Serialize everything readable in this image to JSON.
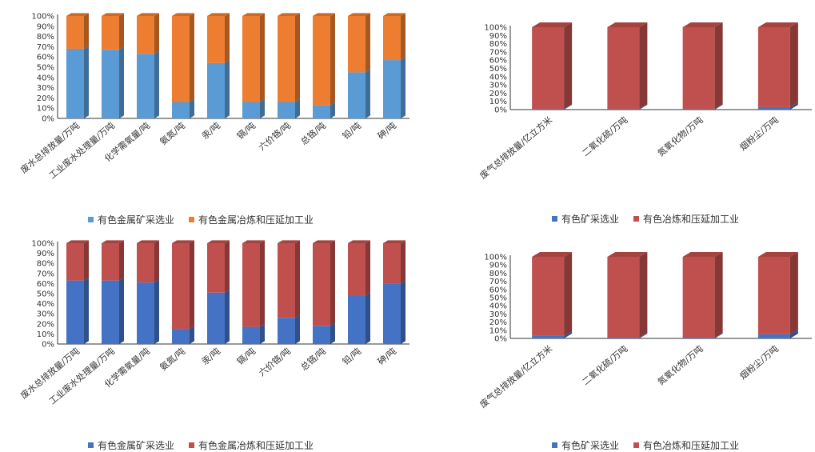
{
  "chart_data": [
    {
      "type": "bar",
      "stacked": true,
      "percent": true,
      "style": "3d",
      "categories": [
        "废水总排放量/万吨",
        "工业废水处理量/万吨",
        "化学需氧量/吨",
        "氨氮/吨",
        "汞/吨",
        "镉/吨",
        "六价铬/吨",
        "总铬/吨",
        "铅/吨",
        "砷/吨"
      ],
      "series": [
        {
          "name": "有色金属矿采选业",
          "color": "#5b9bd5",
          "values": [
            68,
            67,
            63,
            16,
            54,
            16,
            16,
            13,
            45,
            57
          ]
        },
        {
          "name": "有色金属冶炼和压延加工业",
          "color": "#ed7d31",
          "values": [
            32,
            33,
            37,
            84,
            46,
            84,
            84,
            87,
            55,
            43
          ]
        }
      ],
      "yticks": [
        "0%",
        "10%",
        "20%",
        "30%",
        "40%",
        "50%",
        "60%",
        "70%",
        "80%",
        "90%",
        "100%"
      ],
      "ylim": [
        0,
        100
      ],
      "legend": "bottom"
    },
    {
      "type": "bar",
      "stacked": true,
      "percent": true,
      "style": "3d",
      "categories": [
        "废气总排放量/亿立方米",
        "二氧化硫/万吨",
        "氮氧化物/万吨",
        "烟粉尘/万吨"
      ],
      "series": [
        {
          "name": "有色矿采选业",
          "color": "#4472c4",
          "values": [
            1,
            1,
            1,
            3
          ]
        },
        {
          "name": "有色冶炼和压延加工业",
          "color": "#c0504d",
          "values": [
            99,
            99,
            99,
            97
          ]
        }
      ],
      "yticks": [
        "0%",
        "10%",
        "20%",
        "30%",
        "40%",
        "50%",
        "60%",
        "70%",
        "80%",
        "90%",
        "100%"
      ],
      "ylim": [
        0,
        100
      ],
      "legend": "bottom"
    },
    {
      "type": "bar",
      "stacked": true,
      "percent": true,
      "style": "3d",
      "categories": [
        "废水总排放量/万吨",
        "工业废水处理量/万吨",
        "化学需氧量/吨",
        "氨氮/吨",
        "汞/吨",
        "镉/吨",
        "六价铬/吨",
        "总铬/吨",
        "铅/吨",
        "砷/吨"
      ],
      "series": [
        {
          "name": "有色金属矿采选业",
          "color": "#4472c4",
          "values": [
            63,
            63,
            61,
            15,
            51,
            17,
            26,
            18,
            48,
            60
          ]
        },
        {
          "name": "有色金属冶炼和压延加工业",
          "color": "#c0504d",
          "values": [
            37,
            37,
            39,
            85,
            49,
            83,
            74,
            82,
            52,
            40
          ]
        }
      ],
      "yticks": [
        "0%",
        "10%",
        "20%",
        "30%",
        "40%",
        "50%",
        "60%",
        "70%",
        "80%",
        "90%",
        "100%"
      ],
      "ylim": [
        0,
        100
      ],
      "legend": "bottom"
    },
    {
      "type": "bar",
      "stacked": true,
      "percent": true,
      "style": "3d",
      "categories": [
        "废气总排放量/亿立方米",
        "二氧化硫/万吨",
        "氮氧化物/万吨",
        "烟粉尘/万吨"
      ],
      "series": [
        {
          "name": "有色矿采选业",
          "color": "#4472c4",
          "values": [
            3,
            1,
            1,
            5
          ]
        },
        {
          "name": "有色冶炼和压延加工业",
          "color": "#c0504d",
          "values": [
            97,
            99,
            99,
            95
          ]
        }
      ],
      "yticks": [
        "0%",
        "10%",
        "20%",
        "30%",
        "40%",
        "50%",
        "60%",
        "70%",
        "80%",
        "90%",
        "100%"
      ],
      "ylim": [
        0,
        100
      ],
      "legend": "bottom"
    }
  ]
}
